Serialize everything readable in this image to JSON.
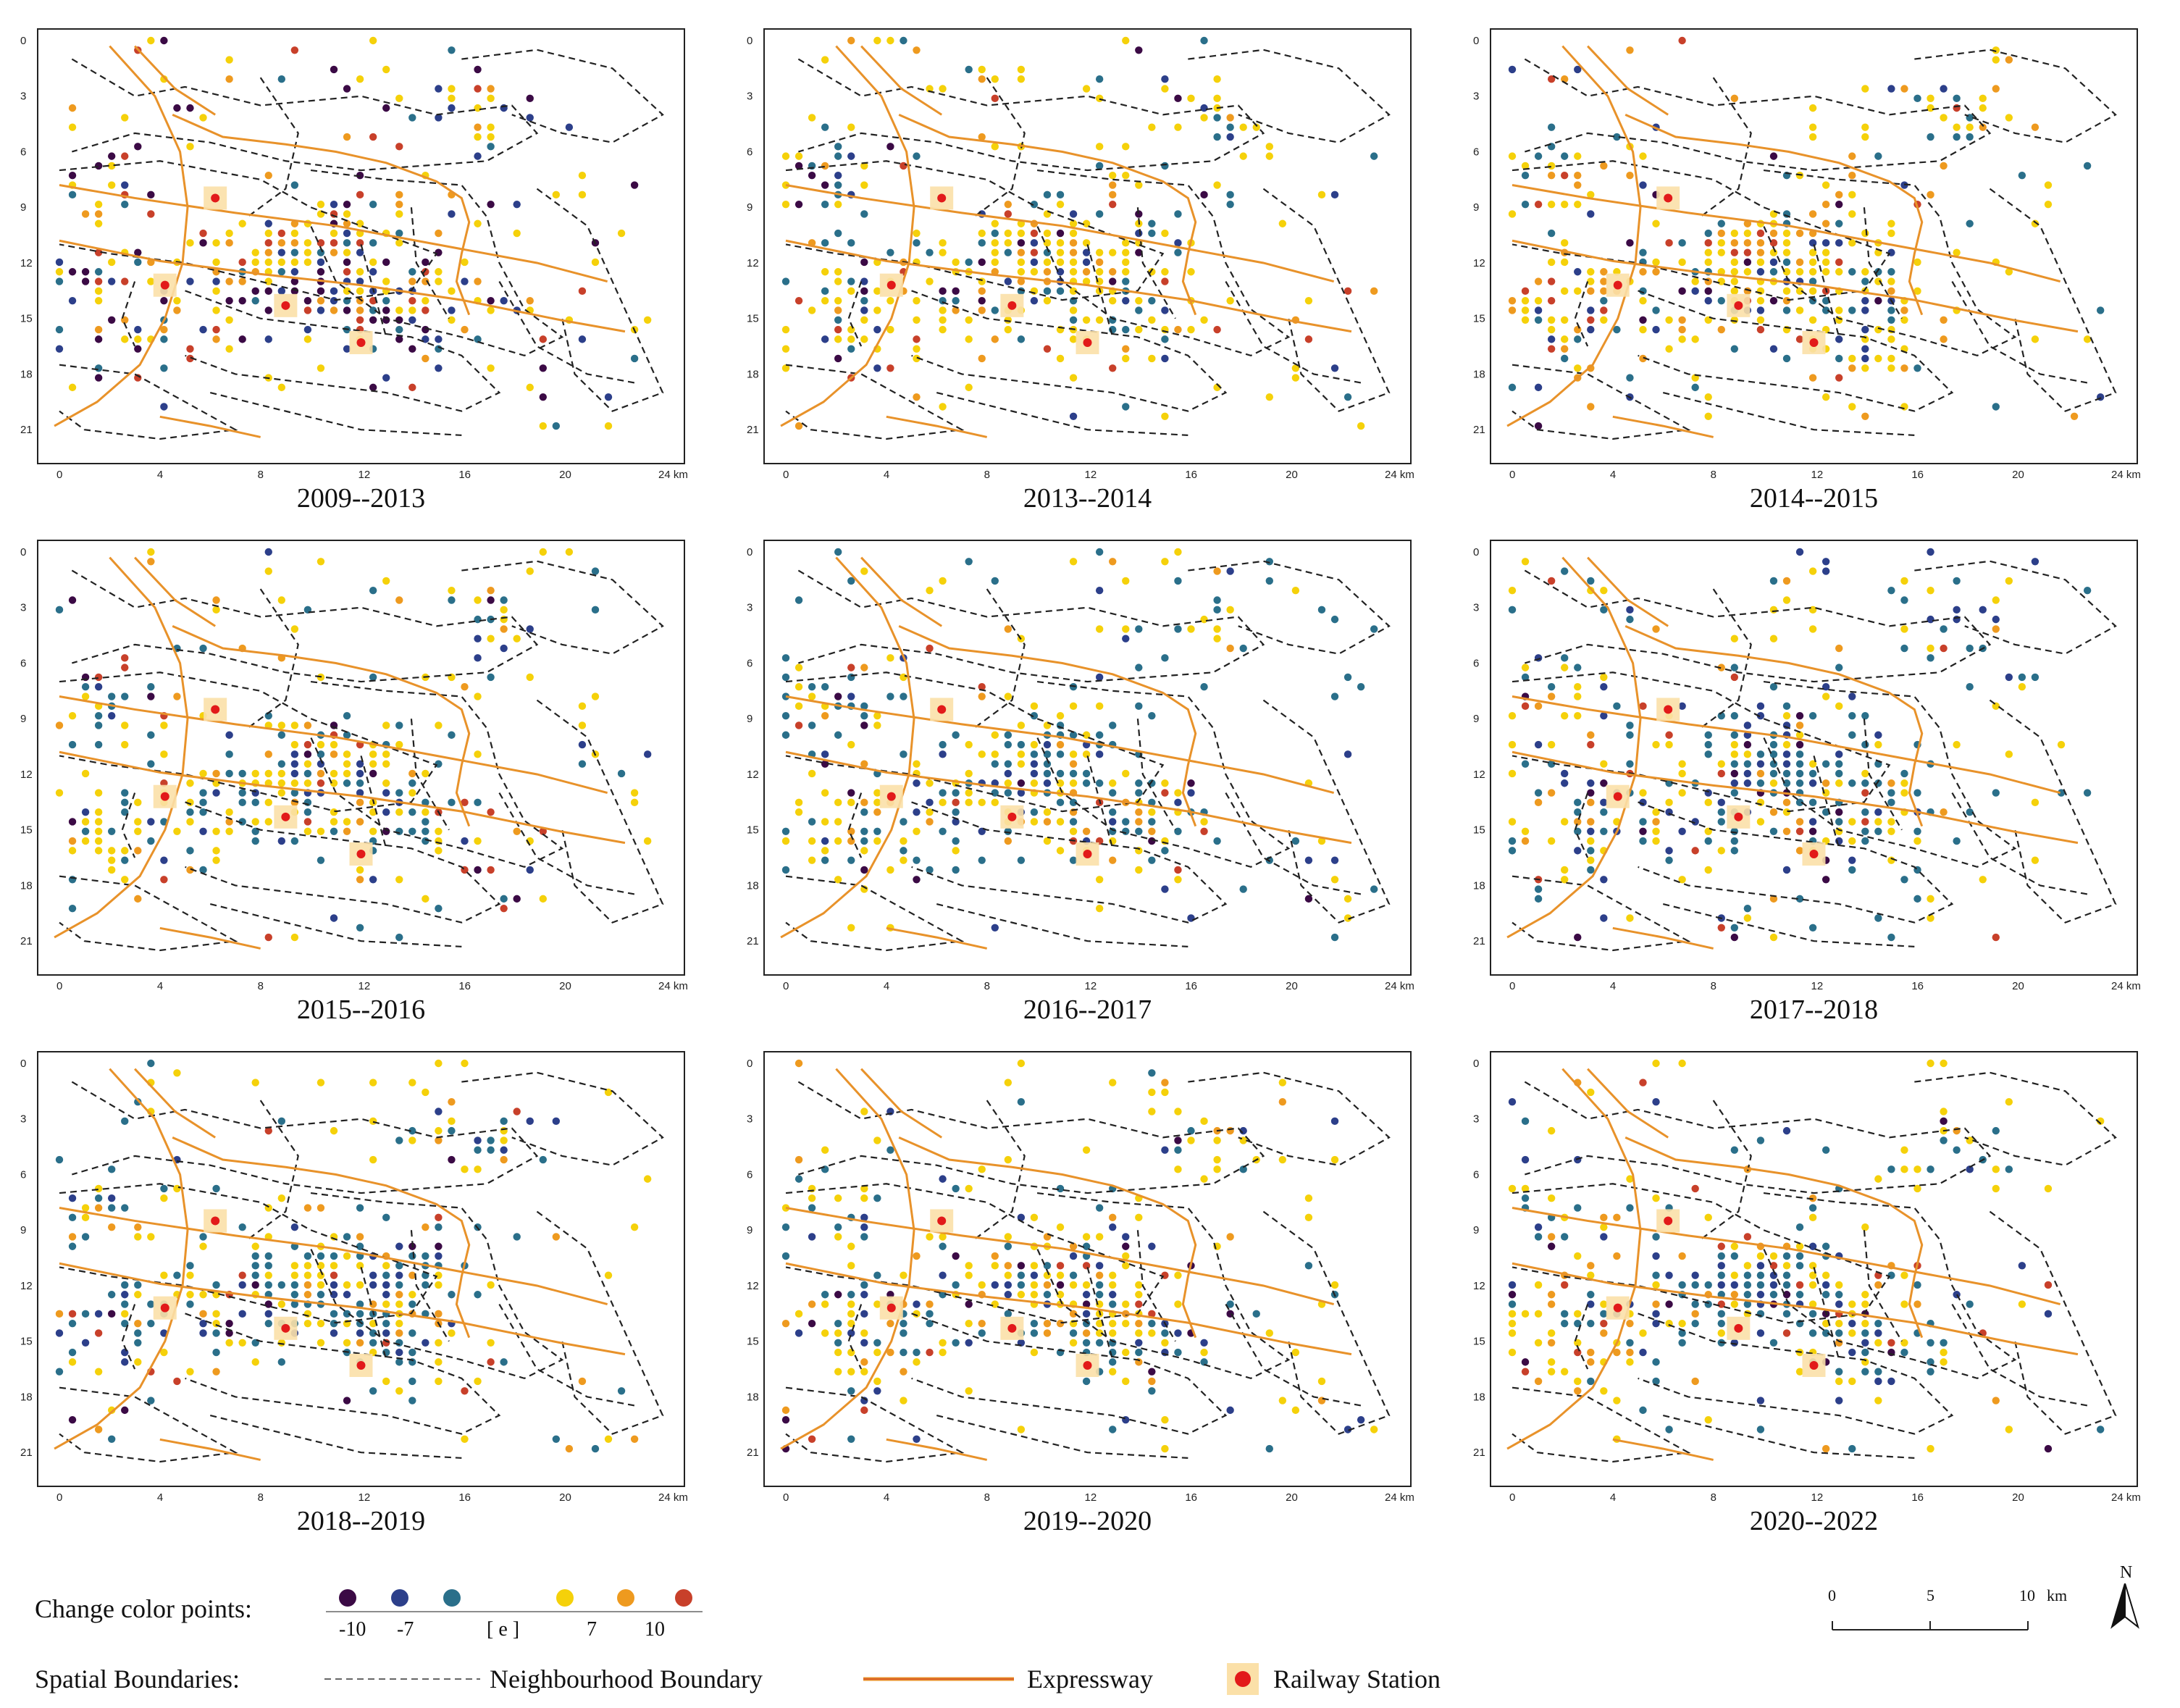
{
  "panels": [
    {
      "title": "2009--2013",
      "seed": 11,
      "bias": [
        0.18,
        0.14,
        0.1,
        0.33,
        0.12,
        0.13
      ]
    },
    {
      "title": "2013--2014",
      "seed": 23,
      "bias": [
        0.05,
        0.1,
        0.22,
        0.48,
        0.1,
        0.05
      ]
    },
    {
      "title": "2014--2015",
      "seed": 37,
      "bias": [
        0.04,
        0.08,
        0.2,
        0.4,
        0.18,
        0.1
      ]
    },
    {
      "title": "2015--2016",
      "seed": 41,
      "bias": [
        0.03,
        0.08,
        0.3,
        0.42,
        0.1,
        0.07
      ]
    },
    {
      "title": "2016--2017",
      "seed": 53,
      "bias": [
        0.04,
        0.12,
        0.38,
        0.34,
        0.08,
        0.04
      ]
    },
    {
      "title": "2017--2018",
      "seed": 67,
      "bias": [
        0.05,
        0.16,
        0.4,
        0.28,
        0.07,
        0.04
      ]
    },
    {
      "title": "2018--2019",
      "seed": 71,
      "bias": [
        0.03,
        0.1,
        0.4,
        0.34,
        0.09,
        0.04
      ]
    },
    {
      "title": "2019--2020",
      "seed": 83,
      "bias": [
        0.05,
        0.1,
        0.26,
        0.44,
        0.1,
        0.05
      ]
    },
    {
      "title": "2020--2022",
      "seed": 97,
      "bias": [
        0.05,
        0.14,
        0.34,
        0.3,
        0.1,
        0.07
      ]
    }
  ],
  "axes": {
    "x_ticks": [
      "0",
      "4",
      "8",
      "12",
      "16",
      "20",
      "24 km"
    ],
    "y_ticks": [
      "0",
      "3",
      "6",
      "9",
      "12",
      "15",
      "18",
      "21"
    ]
  },
  "legend": {
    "change_label": "Change color points:",
    "point_colors": [
      "#3b0a45",
      "#2c3f8a",
      "#2a6f8a",
      "#f5d10a",
      "#ee9a1f",
      "#c8402a"
    ],
    "point_labels": [
      "-10",
      "-7",
      "[ e ]",
      "7",
      "10"
    ],
    "spatial_label": "Spatial Boundaries:",
    "neighbourhood": "Neighbourhood Boundary",
    "expressway": "Expressway",
    "railway": "Railway Station",
    "expressway_color": "#e8922a",
    "station_color": "#e21a1a",
    "station_bg": "#fbe0a8"
  },
  "scalebar": {
    "ticks": [
      "0",
      "5",
      "10"
    ],
    "unit": "km"
  },
  "north": "N"
}
